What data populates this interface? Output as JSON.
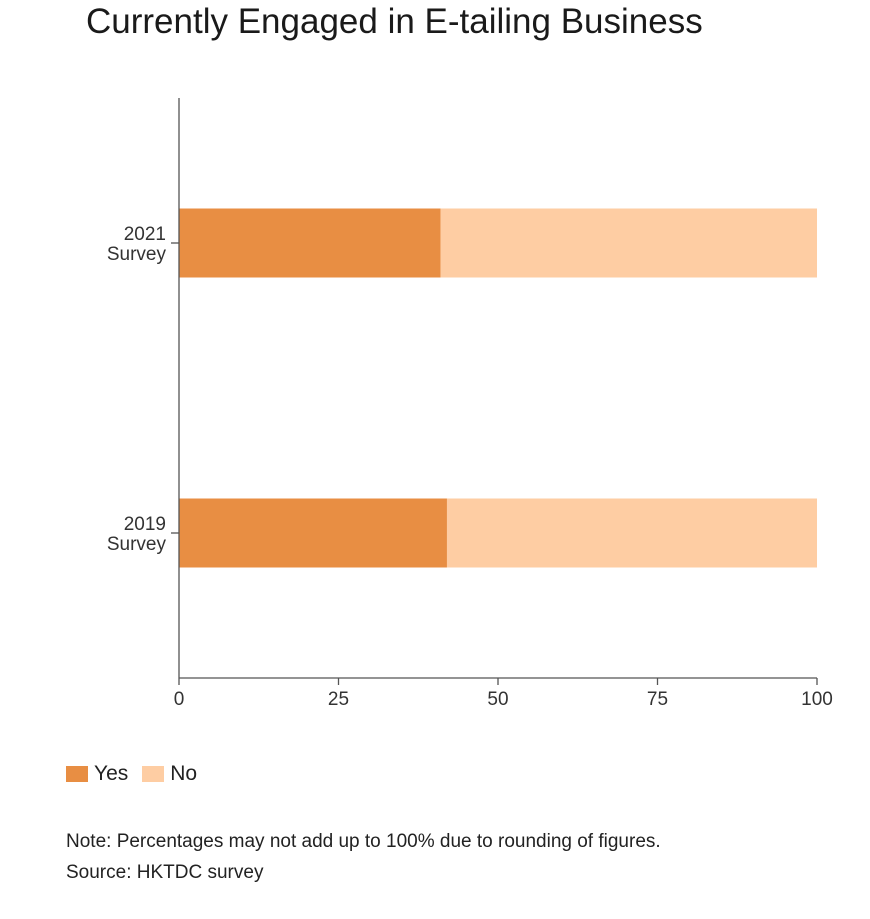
{
  "chart_data": {
    "type": "bar",
    "orientation": "horizontal",
    "stacked": true,
    "title": "Currently Engaged in E-tailing Business",
    "categories": [
      [
        "2021",
        "Survey"
      ],
      [
        "2019",
        "Survey"
      ]
    ],
    "series": [
      {
        "name": "Yes",
        "color": "#e88e43",
        "values": [
          41,
          42
        ]
      },
      {
        "name": "No",
        "color": "#fecda3",
        "values": [
          59,
          58
        ]
      }
    ],
    "xlim": [
      0,
      100
    ],
    "xticks": [
      "0",
      "25",
      "50",
      "75",
      "100"
    ],
    "xlabel": "",
    "ylabel": "",
    "grid": false,
    "legend": "bottom-left"
  },
  "notes": {
    "note": "Note: Percentages may not add up to 100% due to rounding of figures.",
    "source": "Source: HKTDC survey"
  }
}
